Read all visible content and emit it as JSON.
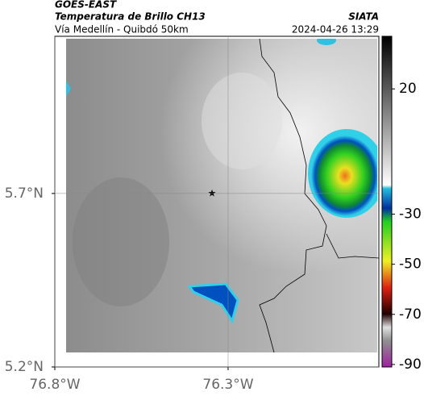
{
  "header": {
    "source": "GOES-EAST",
    "title": "Temperatura de Brillo CH13",
    "subtitle": "Vía Medellín - Quibdó 50km",
    "brand": "SIATA",
    "timestamp": "2024-04-26 13:29"
  },
  "map": {
    "xlim": [
      -76.8,
      -75.865
    ],
    "ylim": [
      5.2,
      6.153
    ],
    "xticks": [
      {
        "value": -76.8,
        "label": "76.8°W"
      },
      {
        "value": -76.3,
        "label": "76.3°W"
      }
    ],
    "yticks": [
      {
        "value": 5.7,
        "label": "5.7°N"
      },
      {
        "value": 5.2,
        "label": "5.2°N"
      }
    ],
    "colorbar": {
      "clim": [
        41,
        -91
      ],
      "ticks": [
        20,
        -30,
        -50,
        -70,
        -90
      ]
    }
  }
}
